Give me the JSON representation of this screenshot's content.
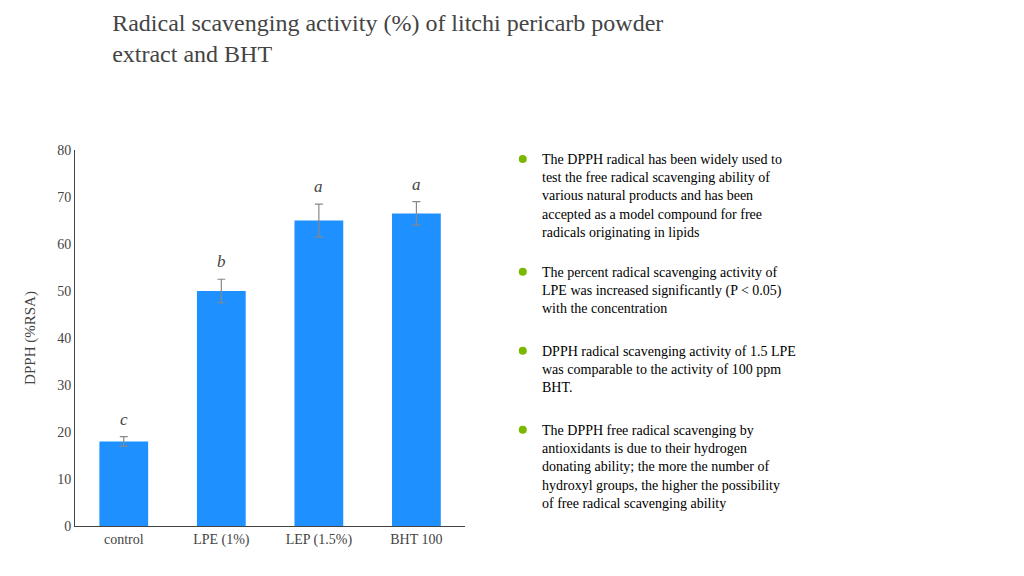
{
  "chart_data": {
    "type": "bar",
    "title": "Radical scavenging activity (%) of litchi pericarb powder\nextract and BHT",
    "categories": [
      "control",
      "LPE (1%)",
      "LEP (1.5%)",
      "BHT 100"
    ],
    "values": [
      18.0,
      50.0,
      65.0,
      66.5
    ],
    "errors": [
      1.0,
      2.5,
      3.5,
      2.5
    ],
    "color": "#1E90FF",
    "ylabel": "DPPH (%RSA)",
    "ylim": [
      0,
      80
    ],
    "yticks": [
      0,
      10,
      20,
      30,
      40,
      50,
      60,
      70,
      80
    ],
    "grid": false,
    "annotations": [
      {
        "category": "control",
        "text": "c"
      },
      {
        "category": "LPE (1%)",
        "text": "b"
      },
      {
        "category": "LEP (1.5%)",
        "text": "a"
      },
      {
        "category": "BHT 100",
        "text": "a"
      },
      {
        "text": "The DPPH radical has been widely used to\ntest the free radical scavenging ability of\nvarious natural products and has been\naccepted as a model compound for free\nradicals originating in lipids"
      },
      {
        "text": "The percent radical scavenging activity of\nLPE was increased significantly (P < 0.05)\nwith the concentration"
      },
      {
        "text": "DPPH radical scavenging activity of 1.5 LPE\nwas comparable to the activity of 100 ppm\nBHT."
      },
      {
        "text": "The DPPH free radical scavenging by\nantioxidants is due to their hydrogen\ndonating ability; the more the number of\nhydroxyl groups, the higher the possibility\nof free radical scavenging ability"
      }
    ]
  }
}
